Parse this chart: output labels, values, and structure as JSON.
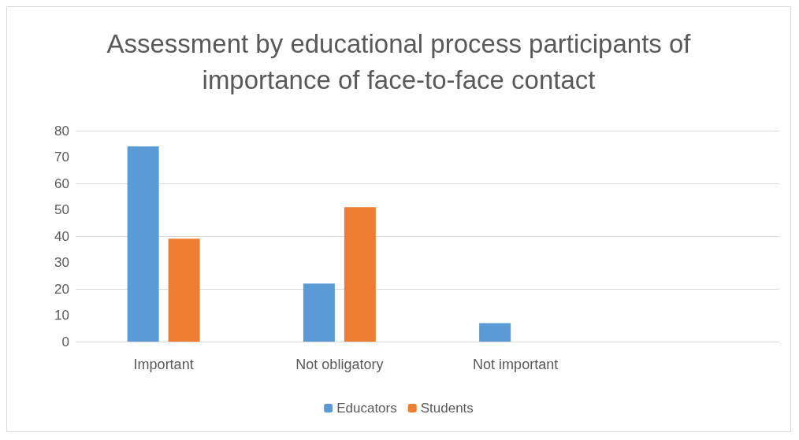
{
  "chart_data": {
    "type": "bar",
    "title": "Assessment by educational process participants of\nimportance of face-to-face contact",
    "categories": [
      "Important",
      "Not obligatory",
      "Not important",
      null
    ],
    "series": [
      {
        "name": "Educators",
        "color": "#5b9bd5",
        "values": [
          74,
          22,
          7,
          null
        ]
      },
      {
        "name": "Students",
        "color": "#ed7d31",
        "values": [
          39,
          51,
          null,
          null
        ]
      }
    ],
    "ylim": [
      0,
      80
    ],
    "yticks": [
      0,
      10,
      20,
      30,
      40,
      50,
      60,
      70,
      80
    ],
    "grid": "y",
    "legend": "bottom"
  }
}
